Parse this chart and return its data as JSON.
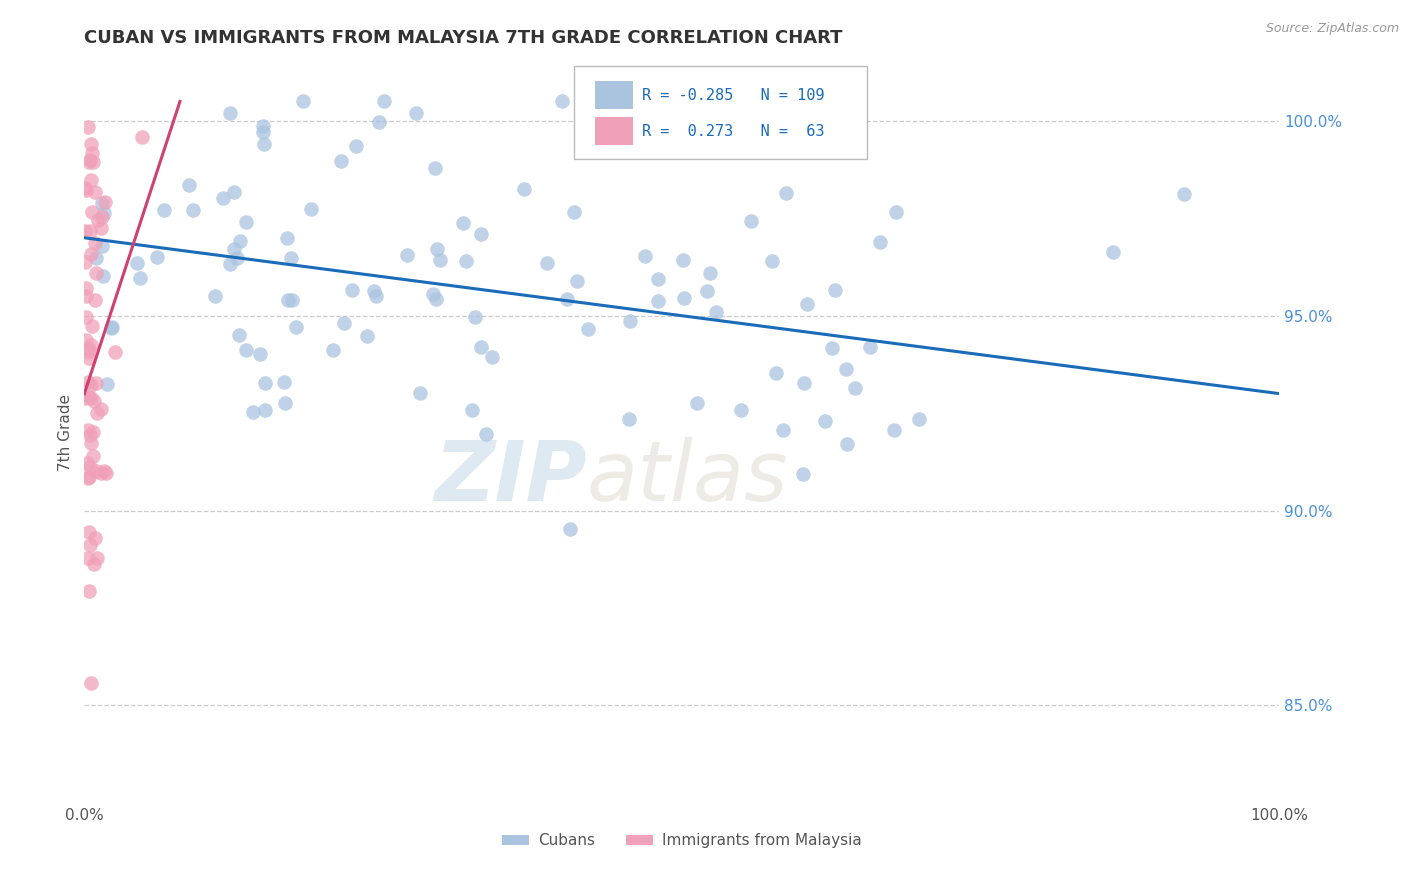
{
  "title": "CUBAN VS IMMIGRANTS FROM MALAYSIA 7TH GRADE CORRELATION CHART",
  "source_text": "Source: ZipAtlas.com",
  "ylabel": "7th Grade",
  "watermark_zip": "ZIP",
  "watermark_atlas": "atlas",
  "legend_blue_label": "Cubans",
  "legend_pink_label": "Immigrants from Malaysia",
  "blue_color": "#aac4e0",
  "pink_color": "#f0a0b8",
  "blue_line_color": "#1a6bb8",
  "pink_line_color": "#d04070",
  "xlim": [
    0.0,
    100.0
  ],
  "ylim": [
    82.5,
    101.5
  ],
  "yticks_right": [
    85.0,
    90.0,
    95.0,
    100.0
  ],
  "ytick_right_labels": [
    "85.0%",
    "90.0%",
    "95.0%",
    "100.0%"
  ],
  "grid_color": "#cccccc",
  "bg_color": "#ffffff",
  "blue_r": -0.285,
  "blue_n": 109,
  "pink_r": 0.273,
  "pink_n": 63
}
